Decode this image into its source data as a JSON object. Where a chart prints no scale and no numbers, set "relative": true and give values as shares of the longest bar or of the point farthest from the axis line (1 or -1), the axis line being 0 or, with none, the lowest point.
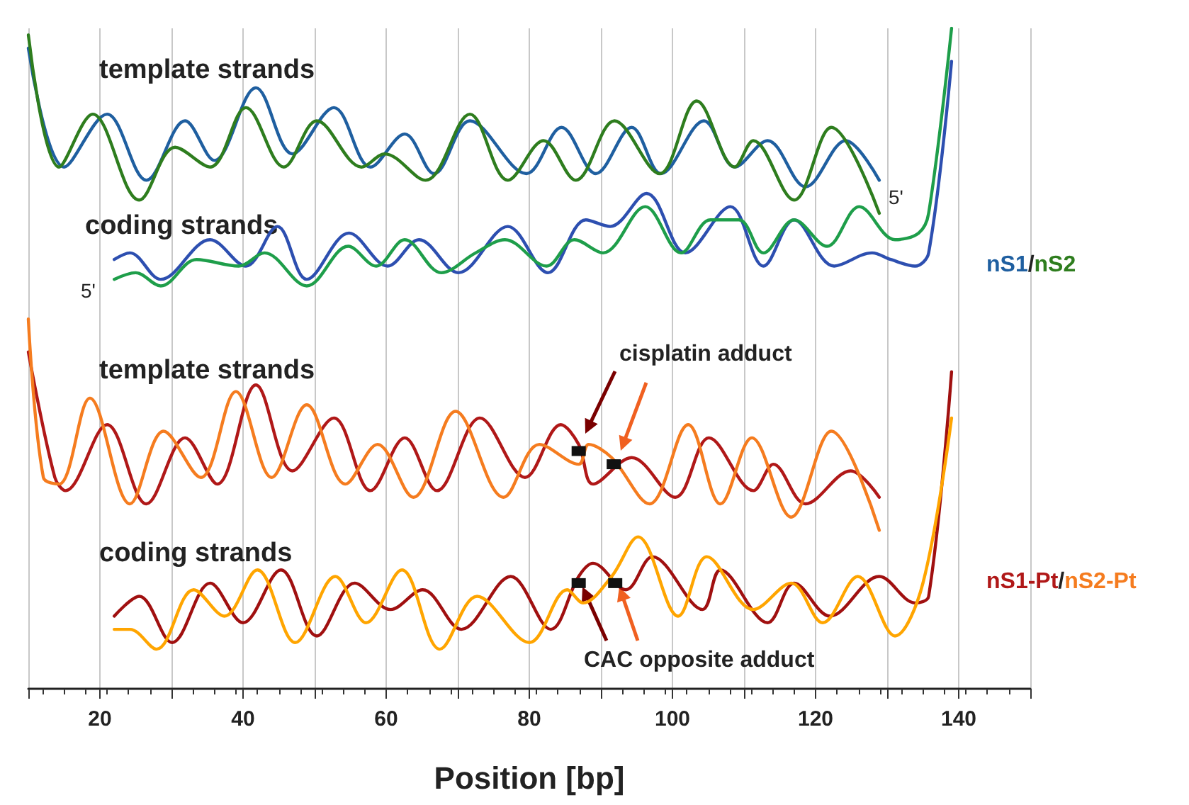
{
  "chart_data": {
    "type": "line",
    "relative": true,
    "xlabel": "Position [bp]",
    "xlim": [
      10,
      150
    ],
    "xticks": [
      {
        "value": 10,
        "label": null
      },
      20,
      {
        "value": 30,
        "label": null
      },
      40,
      {
        "value": 50,
        "label": null
      },
      60,
      {
        "value": 70,
        "label": null
      },
      80,
      {
        "value": 90,
        "label": null
      },
      100,
      {
        "value": 110,
        "label": null
      },
      120,
      {
        "value": 130,
        "label": null
      },
      140,
      {
        "value": 150,
        "label": null
      }
    ],
    "grid": "x",
    "marker": "none",
    "line_style": "solid",
    "series": [
      {
        "name": "nS1",
        "color": "#1f5fa0",
        "x": [
          10,
          15.0,
          21.0,
          26.5,
          31.9,
          36.0,
          41.8,
          46.9,
          52.7,
          57.8,
          62.6,
          66.7,
          71.7,
          79.6,
          84.5,
          89.3,
          94.3,
          98.4,
          104.4,
          108.7,
          113.3,
          118.6,
          124.2,
          128.9
        ],
        "values": [
          0.97,
          0.79,
          0.87,
          0.77,
          0.86,
          0.8,
          0.91,
          0.81,
          0.88,
          0.79,
          0.84,
          0.78,
          0.86,
          0.78,
          0.85,
          0.78,
          0.85,
          0.78,
          0.86,
          0.79,
          0.83,
          0.76,
          0.83,
          0.77
        ]
      },
      {
        "name": "nS2",
        "color": "#2e7d1e",
        "x": [
          10,
          14.3,
          19.0,
          25.5,
          30.5,
          35.4,
          40.4,
          45.7,
          50.3,
          56.6,
          59.8,
          65.5,
          71.7,
          77.0,
          82.0,
          86.5,
          91.9,
          98.2,
          103.4,
          108.7,
          111.3,
          117.0,
          122.2,
          128.9
        ],
        "values": [
          0.99,
          0.79,
          0.87,
          0.74,
          0.82,
          0.79,
          0.88,
          0.79,
          0.86,
          0.79,
          0.81,
          0.77,
          0.87,
          0.77,
          0.83,
          0.77,
          0.86,
          0.78,
          0.89,
          0.79,
          0.83,
          0.74,
          0.85,
          0.72
        ]
      },
      {
        "color": "#2d4fb0",
        "x": [
          22.0,
          24.2,
          28.5,
          35.4,
          40.4,
          44.8,
          48.9,
          54.8,
          60.2,
          64.6,
          70.1,
          77.0,
          82.6,
          87.9,
          91.3,
          96.4,
          101.8,
          108.1,
          112.7,
          117.0,
          122.6,
          127.9,
          130.5,
          133.9,
          135.8,
          139.0
        ],
        "values": [
          0.65,
          0.66,
          0.62,
          0.68,
          0.64,
          0.7,
          0.62,
          0.69,
          0.64,
          0.68,
          0.63,
          0.7,
          0.63,
          0.71,
          0.7,
          0.75,
          0.66,
          0.73,
          0.64,
          0.71,
          0.64,
          0.66,
          0.65,
          0.64,
          0.66,
          0.95
        ]
      },
      {
        "color": "#1e9e4a",
        "x": [
          22.0,
          25.0,
          28.5,
          33.5,
          39.4,
          43.0,
          48.9,
          54.7,
          58.6,
          62.6,
          67.7,
          72.5,
          76.6,
          82.4,
          86.3,
          90.3,
          96.2,
          101.2,
          105.3,
          109.3,
          112.7,
          117.0,
          121.6,
          126.1,
          131.1,
          134.4,
          135.8,
          139.0
        ],
        "values": [
          0.62,
          0.63,
          0.61,
          0.65,
          0.64,
          0.66,
          0.61,
          0.67,
          0.64,
          0.68,
          0.63,
          0.66,
          0.68,
          0.64,
          0.68,
          0.66,
          0.73,
          0.66,
          0.71,
          0.71,
          0.66,
          0.71,
          0.67,
          0.73,
          0.68,
          0.69,
          0.72,
          1.0
        ]
      },
      {
        "name": "nS1-Pt",
        "color": "#b01818",
        "x": [
          10,
          13.7,
          15.2,
          21.0,
          26.5,
          31.9,
          36.4,
          41.8,
          46.9,
          52.7,
          57.8,
          62.6,
          67.1,
          73.1,
          79.4,
          84.4,
          86.9,
          88.9,
          94.3,
          100.4,
          105.1,
          111.3,
          114.1,
          118.6,
          124.9,
          128.9
        ],
        "values": [
          0.51,
          0.32,
          0.3,
          0.4,
          0.28,
          0.38,
          0.31,
          0.46,
          0.33,
          0.41,
          0.3,
          0.38,
          0.3,
          0.41,
          0.32,
          0.4,
          0.37,
          0.31,
          0.35,
          0.29,
          0.38,
          0.3,
          0.34,
          0.28,
          0.33,
          0.29
        ]
      },
      {
        "name": "nS2-Pt",
        "color": "#f57c1f",
        "x": [
          10,
          12.1,
          14.3,
          18.6,
          24.2,
          28.9,
          34.1,
          39.0,
          44.0,
          48.9,
          54.3,
          58.8,
          63.8,
          69.7,
          76.4,
          81.4,
          86.9,
          88.3,
          91.5,
          96.8,
          102.2,
          106.7,
          111.1,
          116.6,
          122.2,
          128.9
        ],
        "values": [
          0.56,
          0.32,
          0.31,
          0.44,
          0.28,
          0.39,
          0.32,
          0.45,
          0.32,
          0.43,
          0.31,
          0.37,
          0.29,
          0.42,
          0.29,
          0.37,
          0.34,
          0.37,
          0.35,
          0.28,
          0.4,
          0.28,
          0.38,
          0.26,
          0.39,
          0.24
        ]
      },
      {
        "color": "#a01010",
        "x": [
          22.0,
          25.5,
          30.1,
          35.4,
          40.0,
          45.3,
          50.3,
          55.6,
          60.6,
          65.1,
          70.5,
          77.4,
          83.0,
          86.9,
          88.9,
          93.5,
          97.2,
          104.2,
          106.7,
          113.3,
          117.0,
          122.0,
          128.9,
          133.9,
          135.8,
          139.0
        ],
        "values": [
          0.11,
          0.14,
          0.07,
          0.16,
          0.1,
          0.18,
          0.08,
          0.16,
          0.12,
          0.15,
          0.09,
          0.17,
          0.09,
          0.17,
          0.19,
          0.15,
          0.2,
          0.12,
          0.18,
          0.1,
          0.16,
          0.11,
          0.17,
          0.13,
          0.14,
          0.48
        ]
      },
      {
        "color": "#ffa500",
        "x": [
          22.0,
          24.2,
          27.9,
          33.1,
          37.4,
          42.0,
          47.3,
          52.9,
          57.2,
          62.2,
          67.5,
          72.7,
          80.0,
          85.3,
          87.5,
          91.5,
          95.2,
          100.8,
          104.8,
          111.3,
          116.6,
          121.0,
          125.9,
          131.1,
          135.0,
          139.0
        ],
        "values": [
          0.09,
          0.09,
          0.06,
          0.15,
          0.11,
          0.18,
          0.07,
          0.17,
          0.1,
          0.18,
          0.06,
          0.14,
          0.07,
          0.15,
          0.13,
          0.17,
          0.23,
          0.11,
          0.2,
          0.12,
          0.16,
          0.1,
          0.17,
          0.08,
          0.16,
          0.41
        ]
      },
      {
        "type": "scatter",
        "marker": "square",
        "color": "#111111",
        "x": [
          86.9,
          91.8,
          86.9,
          92.0
        ],
        "values": [
          0.36,
          0.34,
          0.16,
          0.16
        ]
      }
    ],
    "annotations": [
      "template strands",
      "coding strands",
      "5'",
      "5'",
      "template strands",
      "coding strands",
      "cisplatin adduct",
      "CAC opposite adduct",
      "/",
      "/"
    ]
  }
}
